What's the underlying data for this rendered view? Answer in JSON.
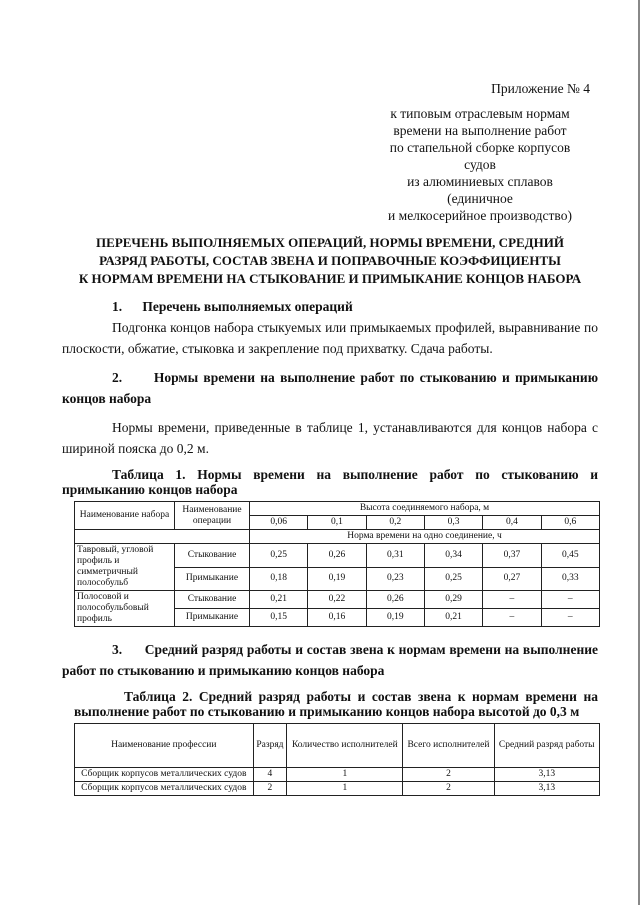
{
  "appendix": {
    "title": "Приложение № 4",
    "lines": [
      "к типовым отраслевым нормам",
      "времени на выполнение работ",
      "по стапельной сборке корпусов судов",
      "из алюминиевых сплавов (единичное",
      "и мелкосерийное производство)"
    ]
  },
  "title": [
    "ПЕРЕЧЕНЬ ВЫПОЛНЯЕМЫХ ОПЕРАЦИЙ, НОРМЫ ВРЕМЕНИ, СРЕДНИЙ",
    "РАЗРЯД РАБОТЫ, СОСТАВ ЗВЕНА И ПОПРАВОЧНЫЕ КОЭФФИЦИЕНТЫ",
    "К НОРМАМ ВРЕМЕНИ НА СТЫКОВАНИЕ И ПРИМЫКАНИЕ КОНЦОВ НАБОРА"
  ],
  "s1": {
    "num": "1.",
    "heading": "Перечень выполняемых операций",
    "text": "Подгонка концов набора стыкуемых или примыкаемых профилей, выравнивание по плоскости, обжатие, стыковка и закрепление под прихватку. Сдача работы."
  },
  "s2": {
    "num": "2.",
    "heading": "Нормы времени на выполнение работ по стыкованию и примыканию концов набора",
    "text": "Нормы времени, приведенные в таблице 1, устанавливаются для концов набора с шириной пояска до 0,2 м."
  },
  "table1": {
    "caption": "Таблица 1. Нормы времени на выполнение работ по стыкованию и примыканию концов набора",
    "h_name": "Наименование набора",
    "h_op": "Наименование операции",
    "h_height": "Высота соединяемого набора, м",
    "heights": [
      "0,06",
      "0,1",
      "0,2",
      "0,3",
      "0,4",
      "0,6"
    ],
    "h_norm": "Норма времени на одно соединение, ч",
    "groups": [
      {
        "name": "Тавровый, угловой профиль и симметричный полособульб",
        "rows": [
          {
            "op": "Стыкование",
            "values": [
              "0,25",
              "0,26",
              "0,31",
              "0,34",
              "0,37",
              "0,45"
            ]
          },
          {
            "op": "Примыкание",
            "values": [
              "0,18",
              "0,19",
              "0,23",
              "0,25",
              "0,27",
              "0,33"
            ]
          }
        ]
      },
      {
        "name": "Полосовой и полособульбовый профиль",
        "rows": [
          {
            "op": "Стыкование",
            "values": [
              "0,21",
              "0,22",
              "0,26",
              "0,29",
              "–",
              "–"
            ]
          },
          {
            "op": "Примыкание",
            "values": [
              "0,15",
              "0,16",
              "0,19",
              "0,21",
              "–",
              "–"
            ]
          }
        ]
      }
    ]
  },
  "s3": {
    "num": "3.",
    "heading": "Средний разряд работы и состав звена к нормам времени на выполнение работ по стыкованию и примыканию концов набора"
  },
  "table2": {
    "caption": "Таблица 2. Средний разряд работы и состав звена к нормам времени на выполнение работ по стыкованию и примыканию концов набора высотой до 0,3 м",
    "headers": [
      "Наименование профессии",
      "Разряд",
      "Количество исполнителей",
      "Всего исполнителей",
      "Средний разряд работы"
    ],
    "rows": [
      [
        "Сборщик корпусов металлических судов",
        "4",
        "1",
        "2",
        "3,13"
      ],
      [
        "Сборщик корпусов металлических судов",
        "2",
        "1",
        "2",
        "3,13"
      ]
    ]
  }
}
